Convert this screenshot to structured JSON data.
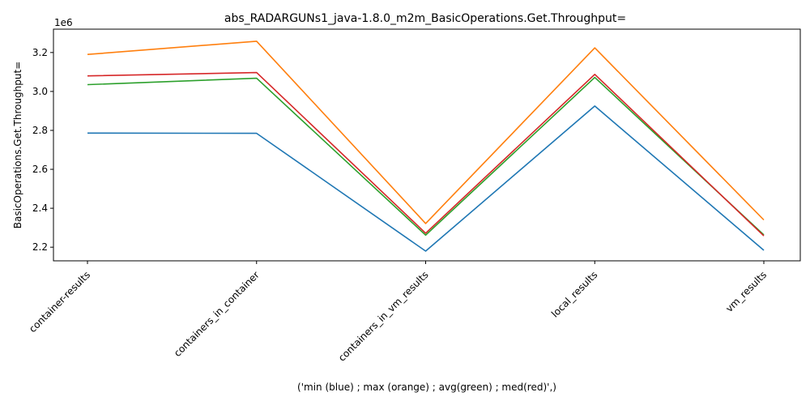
{
  "chart_data": {
    "type": "line",
    "title": "abs_RADARGUNs1_java-1.8.0_m2m_BasicOperations.Get.Throughput=",
    "xlabel": "('min (blue) ; max (orange) ; avg(green) ; med(red)',)",
    "ylabel": "BasicOperations.Get.Throughput=",
    "y_offset_label": "1e6",
    "categories": [
      "container-results",
      "containers_in_container",
      "containers_in_vm_results",
      "local_results",
      "vm_results"
    ],
    "ylim": [
      2.13,
      3.32
    ],
    "yticks": [
      2.2,
      2.4,
      2.6,
      2.8,
      3.0,
      3.2
    ],
    "ytick_labels": [
      "2.2",
      "2.4",
      "2.6",
      "2.8",
      "3.0",
      "3.2"
    ],
    "grid": false,
    "series": [
      {
        "color": "#1f77b4",
        "values": [
          2.786,
          2.785,
          2.18,
          2.925,
          2.184
        ]
      },
      {
        "color": "#ff7f0e",
        "values": [
          3.19,
          3.258,
          2.322,
          3.224,
          2.34
        ]
      },
      {
        "color": "#2ca02c",
        "values": [
          3.035,
          3.068,
          2.262,
          3.072,
          2.263
        ]
      },
      {
        "color": "#d62728",
        "values": [
          3.08,
          3.097,
          2.272,
          3.088,
          2.258
        ]
      }
    ]
  }
}
